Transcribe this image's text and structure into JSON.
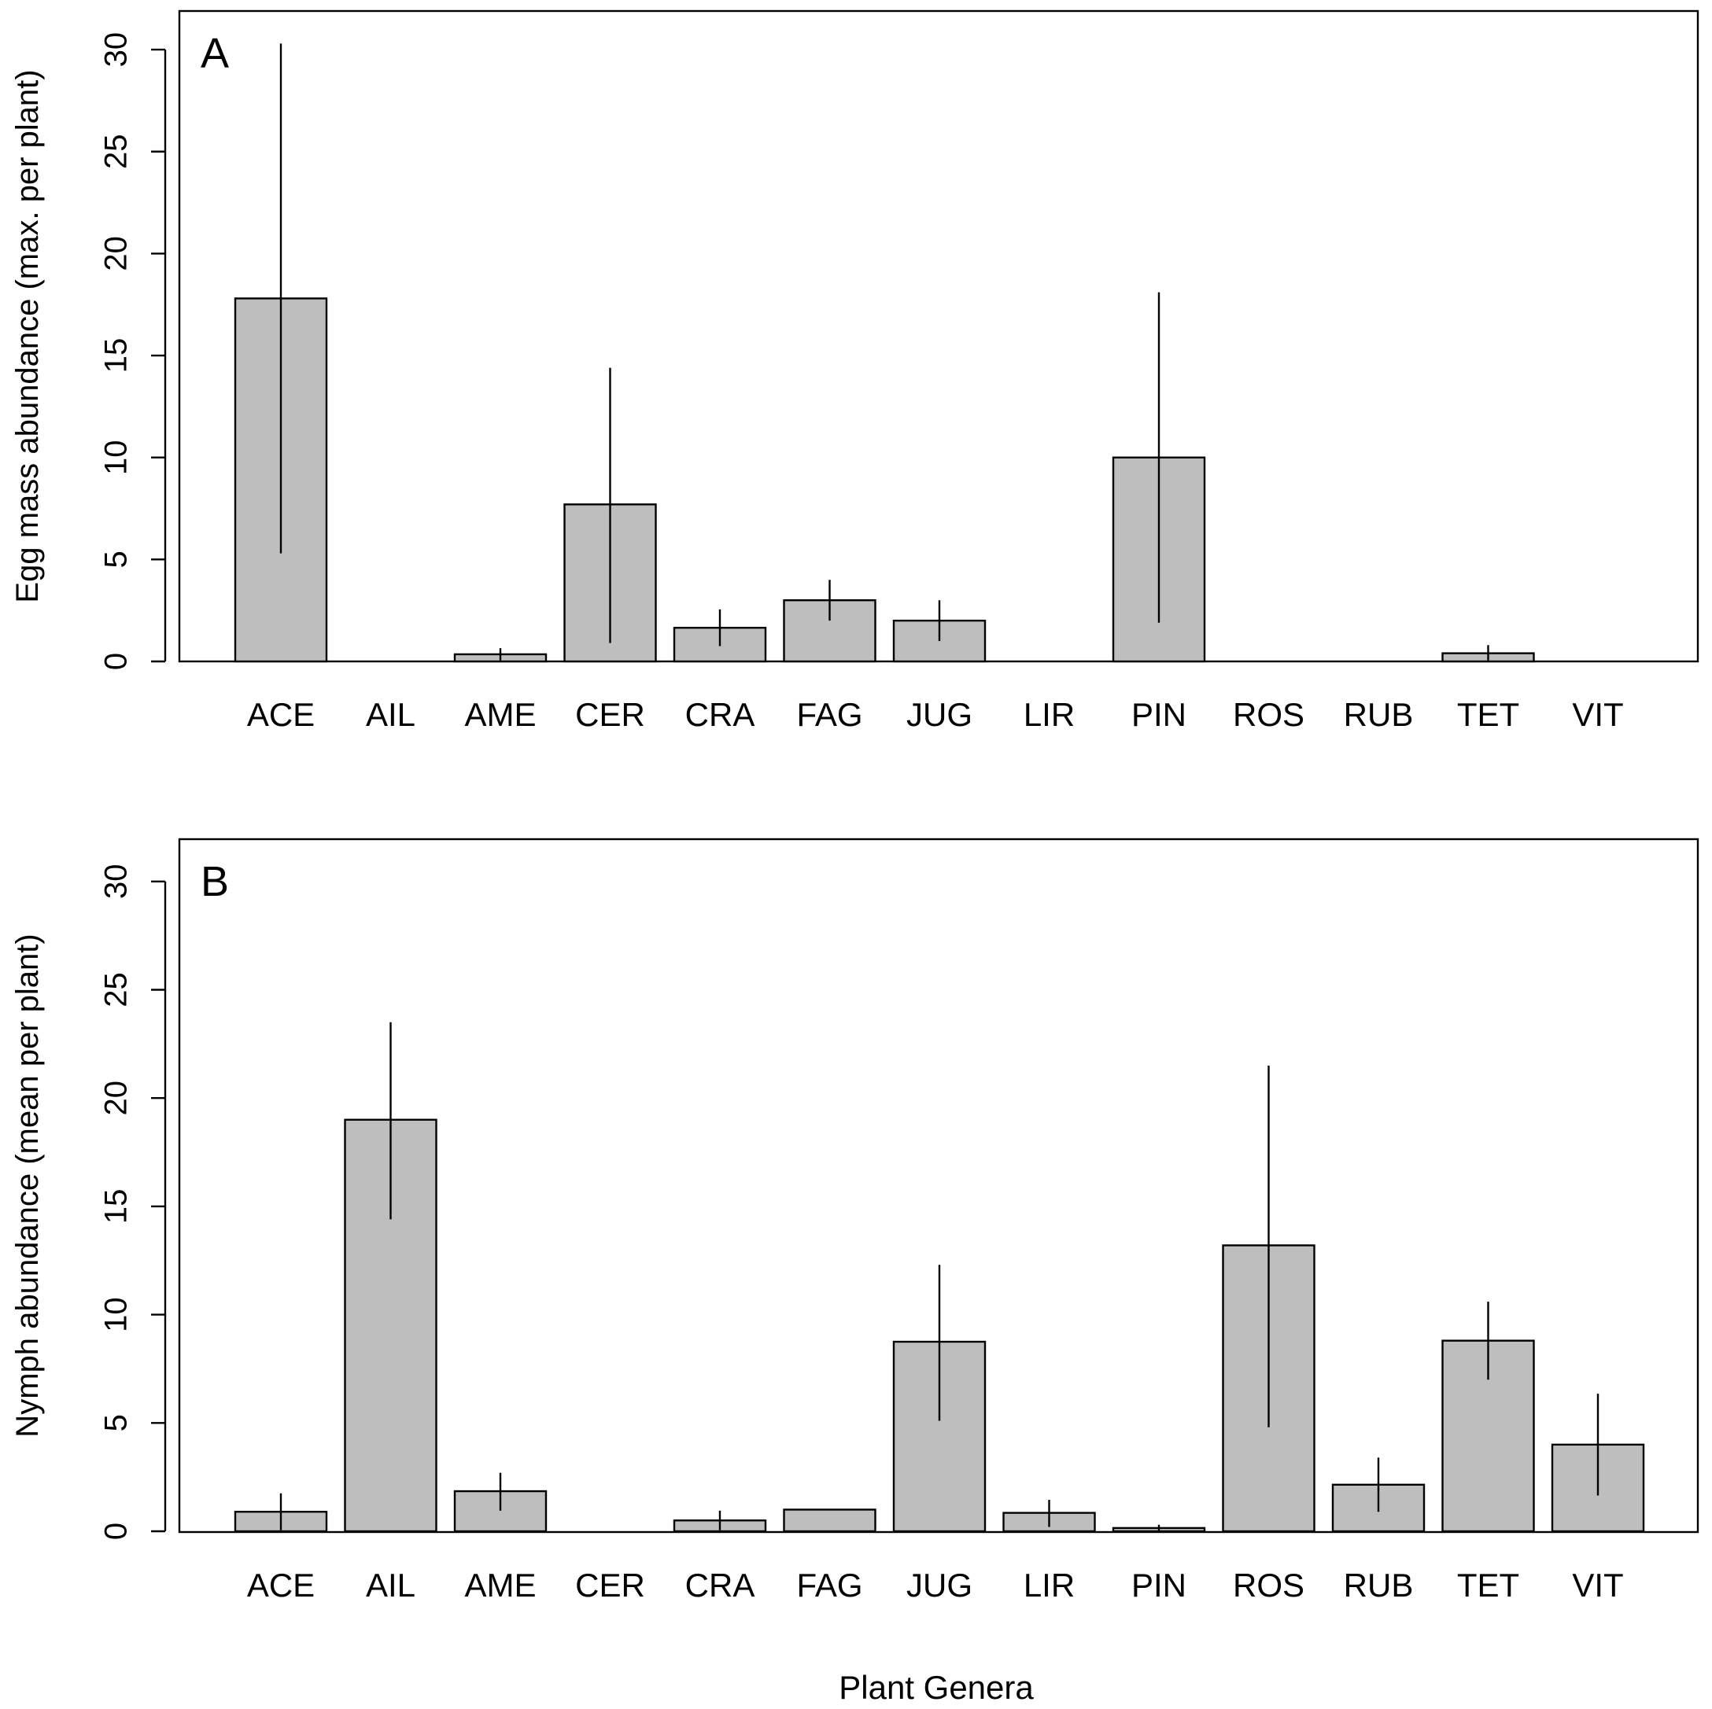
{
  "chart_data": [
    {
      "type": "bar",
      "panel_label": "A",
      "categories": [
        "ACE",
        "AIL",
        "AME",
        "CER",
        "CRA",
        "FAG",
        "JUG",
        "LIR",
        "PIN",
        "ROS",
        "RUB",
        "TET",
        "VIT"
      ],
      "values": [
        17.8,
        0,
        0.35,
        7.7,
        1.65,
        3.0,
        2.0,
        0,
        10.0,
        0,
        0,
        0.4,
        0
      ],
      "error_low": [
        5.3,
        null,
        0.05,
        0.9,
        0.75,
        2.0,
        1.0,
        null,
        1.9,
        null,
        null,
        0.05,
        null
      ],
      "error_high": [
        30.3,
        null,
        0.65,
        14.4,
        2.55,
        4.0,
        3.0,
        null,
        18.1,
        null,
        null,
        0.8,
        null
      ],
      "title": "",
      "xlabel": "",
      "ylabel": "Egg mass abundance (max. per plant)",
      "ylim": [
        0,
        32
      ],
      "yticks": [
        0,
        5,
        10,
        15,
        20,
        25,
        30
      ],
      "grid": false
    },
    {
      "type": "bar",
      "panel_label": "B",
      "categories": [
        "ACE",
        "AIL",
        "AME",
        "CER",
        "CRA",
        "FAG",
        "JUG",
        "LIR",
        "PIN",
        "ROS",
        "RUB",
        "TET",
        "VIT"
      ],
      "values": [
        0.9,
        19.0,
        1.85,
        0,
        0.5,
        1.0,
        8.75,
        0.85,
        0.15,
        13.2,
        2.15,
        8.8,
        4.0
      ],
      "error_low": [
        0.05,
        14.4,
        0.95,
        null,
        0.05,
        null,
        5.1,
        0.2,
        0.0,
        4.8,
        0.9,
        7.0,
        1.65
      ],
      "error_high": [
        1.75,
        23.5,
        2.7,
        null,
        0.95,
        null,
        12.3,
        1.45,
        0.3,
        21.5,
        3.4,
        10.6,
        6.35
      ],
      "title": "",
      "xlabel": "Plant Genera",
      "ylabel": "Nymph abundance (mean per plant)",
      "ylim": [
        0,
        32
      ],
      "yticks": [
        0,
        5,
        10,
        15,
        20,
        25,
        30
      ],
      "grid": false
    }
  ]
}
